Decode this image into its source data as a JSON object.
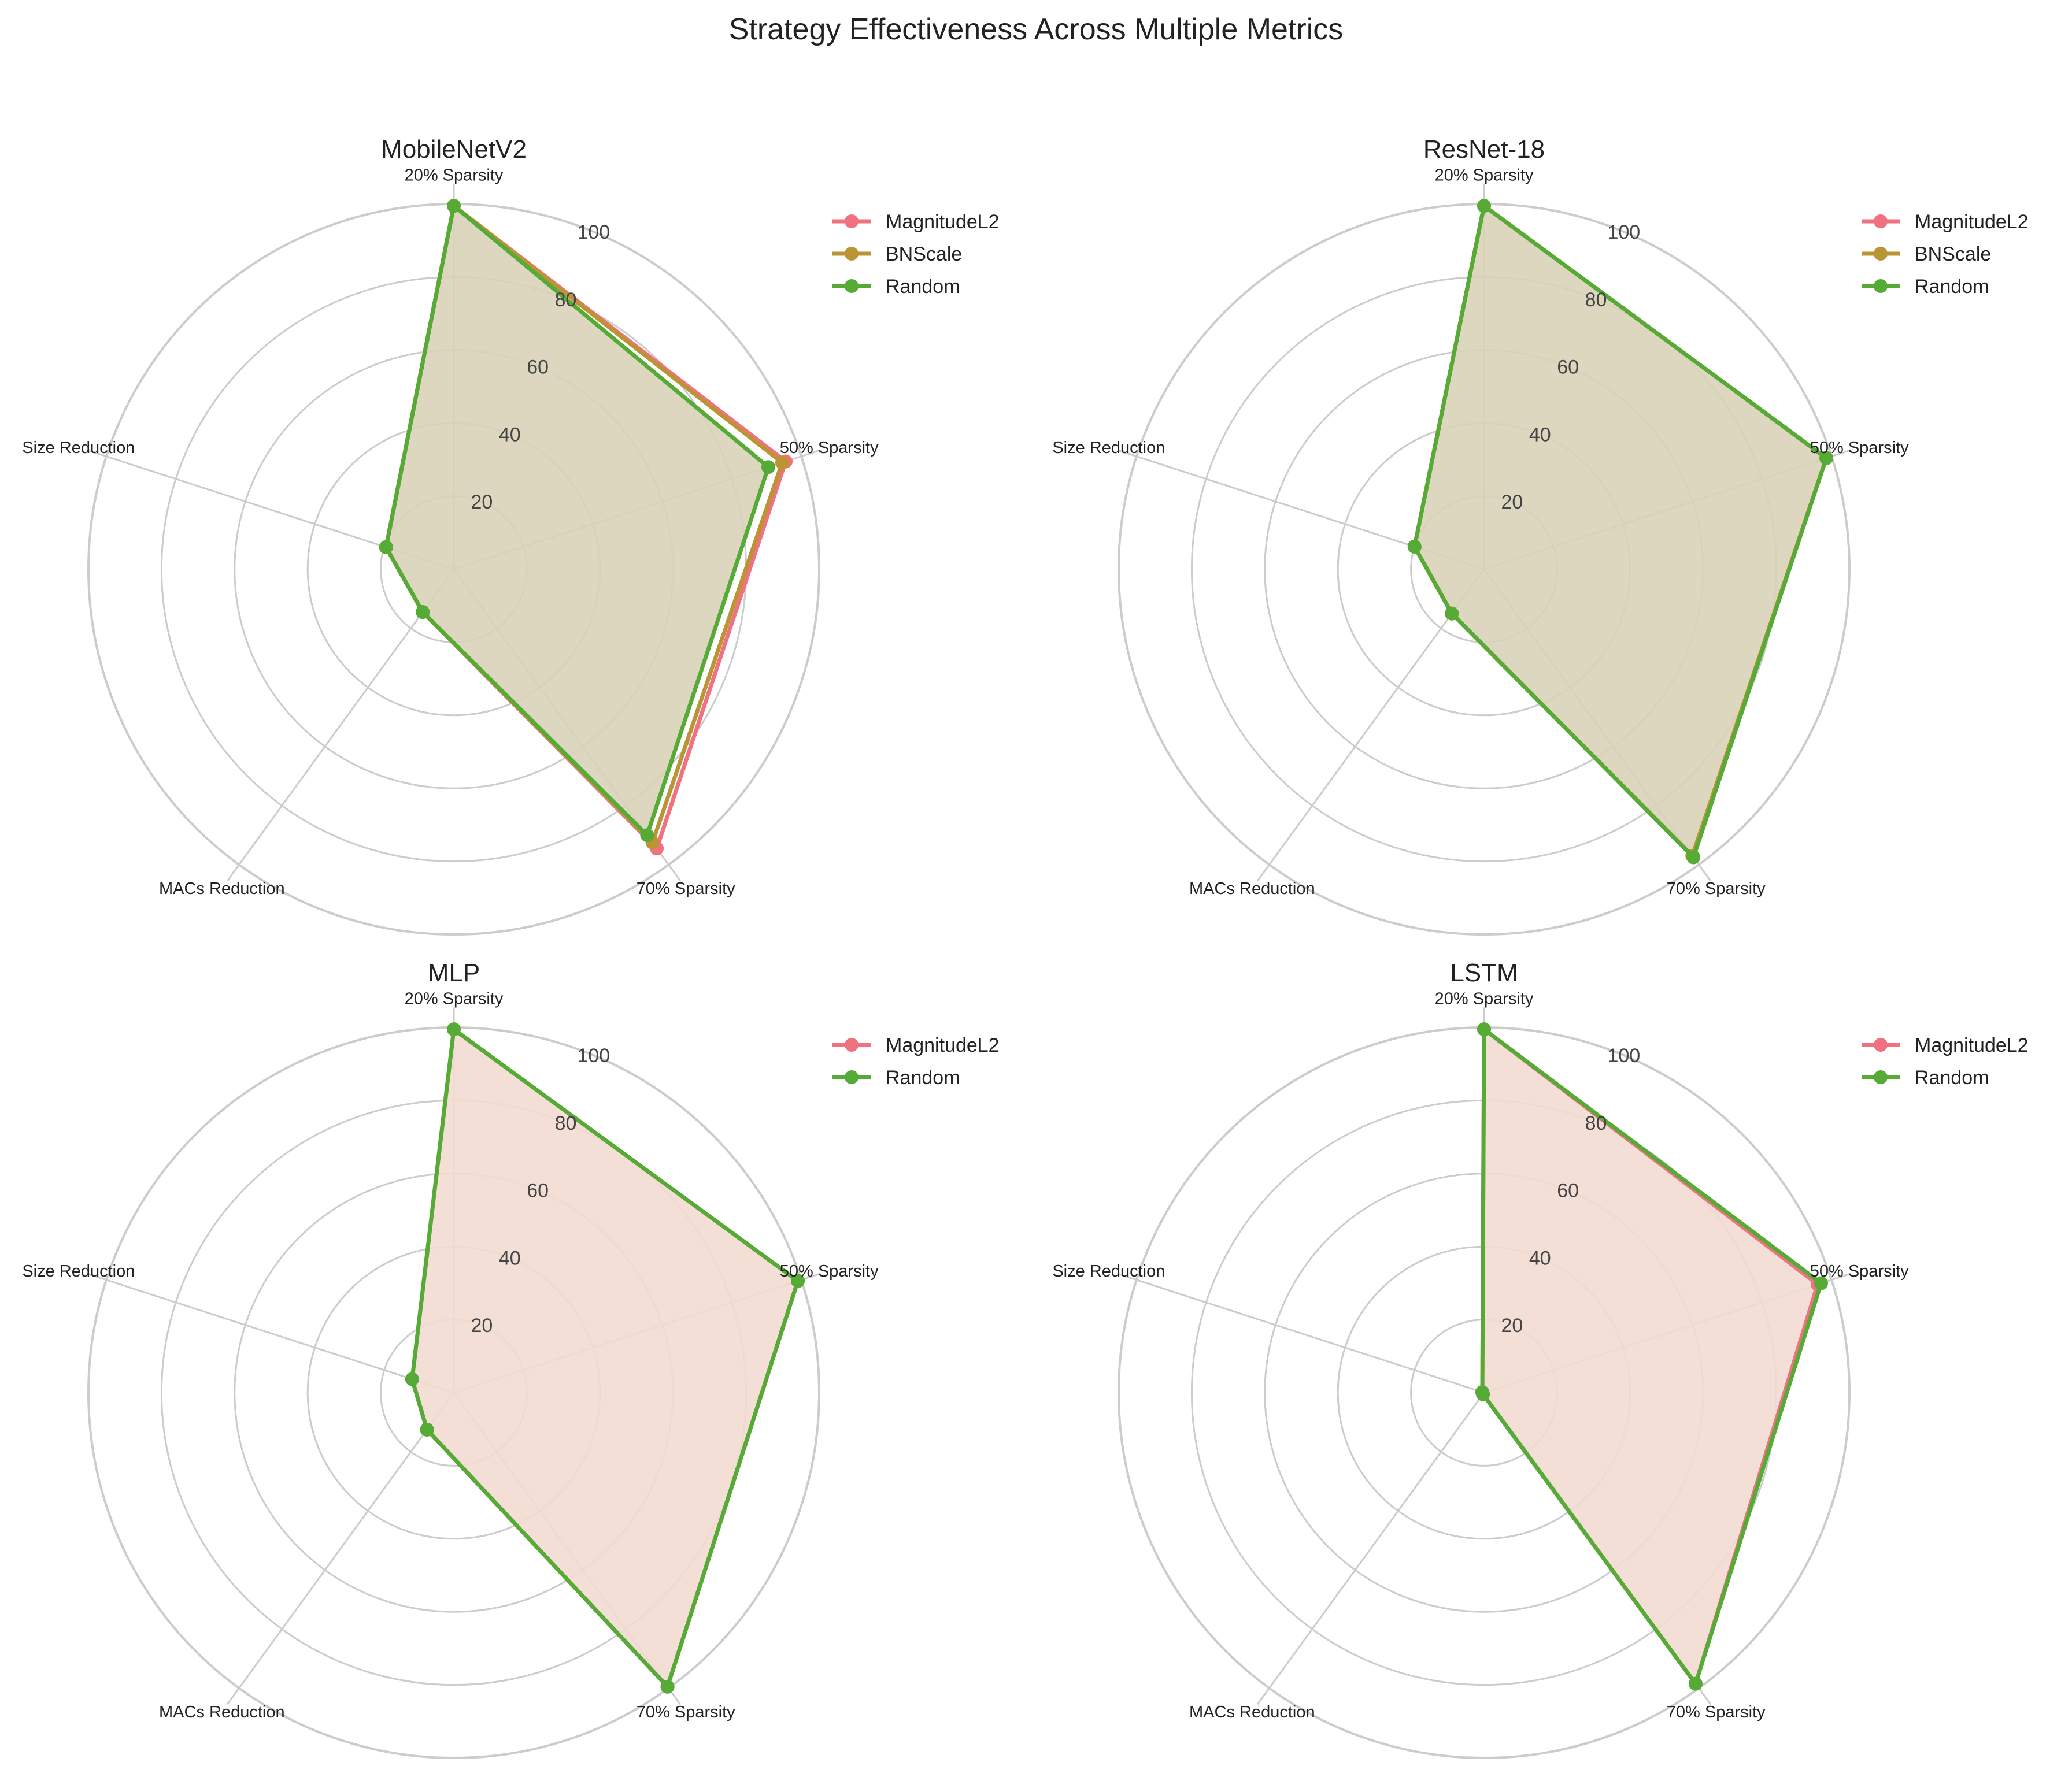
{
  "title": "Strategy Effectiveness Across Multiple Metrics",
  "colors": {
    "MagnitudeL2": "#f0717f",
    "BNScale": "#bb9434",
    "Random": "#55ab35",
    "grid": "#cccccc",
    "tick_text": "#444444"
  },
  "chart_data": [
    {
      "type": "radar",
      "title": "MobileNetV2",
      "axes": [
        "20% Sparsity",
        "50% Sparsity",
        "70% Sparsity",
        "MACs Reduction",
        "Size Reduction"
      ],
      "rlim": [
        0,
        100
      ],
      "rticks": [
        "20",
        "40",
        "60",
        "80",
        "100"
      ],
      "legend": "right",
      "fill_color": "#d9d3b8",
      "series": [
        {
          "name": "MagnitudeL2",
          "values": [
            99.5,
            95.5,
            94.5,
            14.5,
            19.5
          ]
        },
        {
          "name": "BNScale",
          "values": [
            99.5,
            94.5,
            92.5,
            14.5,
            19.5
          ]
        },
        {
          "name": "Random",
          "values": [
            99.5,
            90.5,
            90.0,
            14.5,
            19.5
          ]
        }
      ]
    },
    {
      "type": "radar",
      "title": "ResNet-18",
      "axes": [
        "20% Sparsity",
        "50% Sparsity",
        "70% Sparsity",
        "MACs Reduction",
        "Size Reduction"
      ],
      "rlim": [
        0,
        100
      ],
      "rticks": [
        "20",
        "40",
        "60",
        "80",
        "100"
      ],
      "legend": "right",
      "fill_color": "#d9d3b8",
      "series": [
        {
          "name": "MagnitudeL2",
          "values": [
            99.5,
            98.5,
            97.0,
            15.0,
            20.0
          ]
        },
        {
          "name": "BNScale",
          "values": [
            99.5,
            98.5,
            97.0,
            15.0,
            20.0
          ]
        },
        {
          "name": "Random",
          "values": [
            99.5,
            98.5,
            97.5,
            15.0,
            20.0
          ]
        }
      ]
    },
    {
      "type": "radar",
      "title": "MLP",
      "axes": [
        "20% Sparsity",
        "50% Sparsity",
        "70% Sparsity",
        "MACs Reduction",
        "Size Reduction"
      ],
      "rlim": [
        0,
        100
      ],
      "rticks": [
        "20",
        "40",
        "60",
        "80",
        "100"
      ],
      "legend": "right",
      "fill_color": "#f2dcd2",
      "series": [
        {
          "name": "MagnitudeL2",
          "values": [
            99.5,
            99.0,
            99.5,
            12.5,
            12.0
          ]
        },
        {
          "name": "Random",
          "values": [
            99.5,
            99.0,
            99.5,
            12.5,
            12.0
          ]
        }
      ]
    },
    {
      "type": "radar",
      "title": "LSTM",
      "axes": [
        "20% Sparsity",
        "50% Sparsity",
        "70% Sparsity",
        "MACs Reduction",
        "Size Reduction"
      ],
      "rlim": [
        0,
        100
      ],
      "rticks": [
        "20",
        "40",
        "60",
        "80",
        "100"
      ],
      "legend": "right",
      "fill_color": "#f2dcd2",
      "series": [
        {
          "name": "MagnitudeL2",
          "values": [
            99.5,
            96.0,
            98.5,
            0.5,
            0.5
          ]
        },
        {
          "name": "Random",
          "values": [
            99.5,
            97.0,
            98.5,
            0.5,
            0.5
          ]
        }
      ]
    }
  ]
}
